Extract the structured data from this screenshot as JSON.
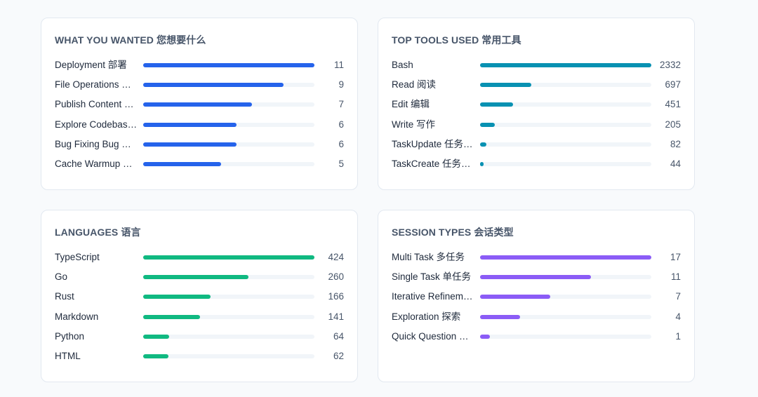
{
  "chart_data": [
    {
      "type": "bar",
      "orientation": "horizontal",
      "title": "WHAT YOU WANTED  您想要什么",
      "color": "#2563eb",
      "categories": [
        "Deployment  部署",
        "File Operations  …",
        "Publish Content  …",
        "Explore Codebas…",
        "Bug Fixing  Bug …",
        "Cache Warmup  …"
      ],
      "values": [
        11,
        9,
        7,
        6,
        6,
        5
      ],
      "xlim": [
        0,
        11
      ]
    },
    {
      "type": "bar",
      "orientation": "horizontal",
      "title": "TOP TOOLS USED  常用工具",
      "color": "#0891b2",
      "categories": [
        "Bash",
        "Read  阅读",
        "Edit  编辑",
        "Write  写作",
        "TaskUpdate  任务…",
        "TaskCreate  任务…"
      ],
      "values": [
        2332,
        697,
        451,
        205,
        82,
        44
      ],
      "xlim": [
        0,
        2332
      ]
    },
    {
      "type": "bar",
      "orientation": "horizontal",
      "title": "LANGUAGES  语言",
      "color": "#10b981",
      "categories": [
        "TypeScript",
        "Go",
        "Rust",
        "Markdown",
        "Python",
        "HTML"
      ],
      "values": [
        424,
        260,
        166,
        141,
        64,
        62
      ],
      "xlim": [
        0,
        424
      ]
    },
    {
      "type": "bar",
      "orientation": "horizontal",
      "title": "SESSION TYPES  会话类型",
      "color": "#8b5cf6",
      "categories": [
        "Multi Task  多任务",
        "Single Task  单任务",
        "Iterative Refinem…",
        "Exploration  探索",
        "Quick Question  …"
      ],
      "values": [
        17,
        11,
        7,
        4,
        1
      ],
      "xlim": [
        0,
        17
      ]
    }
  ]
}
